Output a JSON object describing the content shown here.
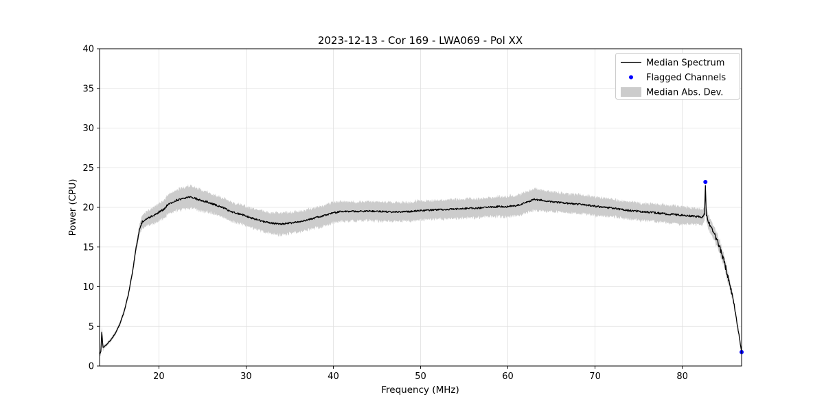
{
  "chart_data": {
    "type": "line",
    "title": "2023-12-13 - Cor 169 - LWA069 - Pol XX",
    "xlabel": "Frequency (MHz)",
    "ylabel": "Power (CPU)",
    "xlim": [
      13.2,
      86.8
    ],
    "ylim": [
      0,
      40
    ],
    "xticks": [
      20,
      30,
      40,
      50,
      60,
      70,
      80
    ],
    "yticks": [
      0,
      5,
      10,
      15,
      20,
      25,
      30,
      35,
      40
    ],
    "grid": true,
    "background": "#ffffff",
    "legend": {
      "position": "upper right"
    },
    "noise_seed": 42,
    "sample_step_mhz": 0.05,
    "noise_amplitude_anchors": [
      [
        13.2,
        0.04
      ],
      [
        16.0,
        0.06
      ],
      [
        18.0,
        0.12
      ],
      [
        20.0,
        0.13
      ],
      [
        30.0,
        0.11
      ],
      [
        40.0,
        0.1
      ],
      [
        50.0,
        0.1
      ],
      [
        60.0,
        0.11
      ],
      [
        70.0,
        0.11
      ],
      [
        80.0,
        0.12
      ],
      [
        82.5,
        0.15
      ],
      [
        83.5,
        0.35
      ],
      [
        85.0,
        0.35
      ],
      [
        86.0,
        0.25
      ],
      [
        86.8,
        0.05
      ]
    ],
    "series": [
      {
        "name": "Median Spectrum",
        "type": "line",
        "color": "#000000",
        "anchors": [
          [
            13.2,
            1.5
          ],
          [
            13.35,
            1.8
          ],
          [
            13.45,
            4.3
          ],
          [
            13.6,
            2.3
          ],
          [
            14.0,
            2.7
          ],
          [
            14.5,
            3.3
          ],
          [
            15.0,
            4.1
          ],
          [
            15.5,
            5.2
          ],
          [
            16.0,
            6.8
          ],
          [
            16.5,
            9.0
          ],
          [
            17.0,
            12.0
          ],
          [
            17.4,
            15.0
          ],
          [
            17.8,
            17.3
          ],
          [
            18.1,
            18.2
          ],
          [
            18.5,
            18.5
          ],
          [
            19.0,
            18.8
          ],
          [
            19.5,
            19.0
          ],
          [
            20.0,
            19.4
          ],
          [
            20.5,
            19.7
          ],
          [
            21.0,
            20.3
          ],
          [
            21.5,
            20.6
          ],
          [
            22.0,
            20.9
          ],
          [
            22.5,
            21.0
          ],
          [
            23.0,
            21.2
          ],
          [
            23.5,
            21.3
          ],
          [
            24.0,
            21.2
          ],
          [
            24.5,
            21.0
          ],
          [
            25.0,
            20.8
          ],
          [
            25.5,
            20.7
          ],
          [
            26.0,
            20.5
          ],
          [
            26.5,
            20.3
          ],
          [
            27.0,
            20.1
          ],
          [
            27.5,
            19.9
          ],
          [
            28.0,
            19.6
          ],
          [
            28.5,
            19.4
          ],
          [
            29.0,
            19.2
          ],
          [
            29.5,
            19.1
          ],
          [
            30.0,
            18.9
          ],
          [
            30.5,
            18.7
          ],
          [
            31.0,
            18.5
          ],
          [
            31.5,
            18.4
          ],
          [
            32.0,
            18.2
          ],
          [
            32.5,
            18.1
          ],
          [
            33.0,
            18.0
          ],
          [
            33.5,
            17.95
          ],
          [
            34.0,
            17.9
          ],
          [
            34.5,
            17.95
          ],
          [
            35.0,
            18.0
          ],
          [
            35.5,
            18.1
          ],
          [
            36.0,
            18.2
          ],
          [
            36.5,
            18.3
          ],
          [
            37.0,
            18.4
          ],
          [
            37.5,
            18.55
          ],
          [
            38.0,
            18.7
          ],
          [
            38.5,
            18.85
          ],
          [
            39.0,
            19.0
          ],
          [
            39.5,
            19.15
          ],
          [
            40.0,
            19.3
          ],
          [
            40.5,
            19.4
          ],
          [
            41.0,
            19.5
          ],
          [
            42.0,
            19.5
          ],
          [
            43.0,
            19.5
          ],
          [
            44.0,
            19.55
          ],
          [
            45.0,
            19.5
          ],
          [
            46.0,
            19.45
          ],
          [
            47.0,
            19.4
          ],
          [
            48.0,
            19.45
          ],
          [
            49.0,
            19.5
          ],
          [
            50.0,
            19.6
          ],
          [
            51.0,
            19.65
          ],
          [
            52.0,
            19.7
          ],
          [
            53.0,
            19.75
          ],
          [
            54.0,
            19.8
          ],
          [
            55.0,
            19.85
          ],
          [
            56.0,
            19.9
          ],
          [
            57.0,
            19.95
          ],
          [
            58.0,
            20.05
          ],
          [
            59.0,
            20.1
          ],
          [
            60.0,
            20.1
          ],
          [
            61.0,
            20.25
          ],
          [
            61.5,
            20.4
          ],
          [
            62.0,
            20.6
          ],
          [
            62.5,
            20.8
          ],
          [
            63.0,
            21.0
          ],
          [
            63.5,
            20.95
          ],
          [
            64.0,
            20.9
          ],
          [
            64.5,
            20.8
          ],
          [
            65.0,
            20.7
          ],
          [
            66.0,
            20.6
          ],
          [
            67.0,
            20.5
          ],
          [
            68.0,
            20.4
          ],
          [
            69.0,
            20.3
          ],
          [
            70.0,
            20.15
          ],
          [
            71.0,
            20.0
          ],
          [
            72.0,
            19.9
          ],
          [
            73.0,
            19.75
          ],
          [
            74.0,
            19.6
          ],
          [
            75.0,
            19.5
          ],
          [
            76.0,
            19.4
          ],
          [
            77.0,
            19.3
          ],
          [
            78.0,
            19.2
          ],
          [
            79.0,
            19.1
          ],
          [
            80.0,
            19.0
          ],
          [
            80.5,
            18.95
          ],
          [
            81.0,
            18.9
          ],
          [
            81.5,
            18.85
          ],
          [
            82.0,
            18.8
          ],
          [
            82.4,
            18.8
          ],
          [
            82.55,
            19.2
          ],
          [
            82.65,
            22.8
          ],
          [
            82.75,
            19.0
          ],
          [
            83.0,
            18.2
          ],
          [
            83.3,
            17.5
          ],
          [
            83.6,
            16.8
          ],
          [
            84.0,
            15.8
          ],
          [
            84.3,
            14.9
          ],
          [
            84.6,
            13.8
          ],
          [
            85.0,
            12.3
          ],
          [
            85.3,
            11.0
          ],
          [
            85.5,
            10.2
          ],
          [
            85.8,
            8.5
          ],
          [
            86.0,
            7.3
          ],
          [
            86.3,
            5.2
          ],
          [
            86.5,
            3.9
          ],
          [
            86.7,
            2.4
          ],
          [
            86.8,
            1.8
          ]
        ]
      },
      {
        "name": "Flagged Channels",
        "type": "scatter",
        "color": "#0000ff",
        "marker": "point",
        "points": [
          [
            82.65,
            23.2
          ],
          [
            86.8,
            1.75
          ]
        ]
      },
      {
        "name": "Median Abs. Dev.",
        "type": "band",
        "color": "#cccccc",
        "halfwidth_anchors": [
          [
            13.2,
            0.15
          ],
          [
            13.45,
            0.8
          ],
          [
            13.7,
            0.2
          ],
          [
            15.0,
            0.25
          ],
          [
            16.5,
            0.35
          ],
          [
            17.5,
            0.6
          ],
          [
            18.0,
            0.8
          ],
          [
            19.0,
            1.0
          ],
          [
            20.0,
            1.1
          ],
          [
            21.0,
            1.2
          ],
          [
            22.0,
            1.3
          ],
          [
            23.0,
            1.4
          ],
          [
            24.0,
            1.4
          ],
          [
            25.0,
            1.3
          ],
          [
            26.0,
            1.2
          ],
          [
            28.0,
            1.2
          ],
          [
            30.0,
            1.2
          ],
          [
            32.0,
            1.3
          ],
          [
            34.0,
            1.4
          ],
          [
            36.0,
            1.3
          ],
          [
            38.0,
            1.3
          ],
          [
            40.0,
            1.3
          ],
          [
            42.0,
            1.2
          ],
          [
            44.0,
            1.2
          ],
          [
            46.0,
            1.2
          ],
          [
            48.0,
            1.2
          ],
          [
            50.0,
            1.2
          ],
          [
            52.0,
            1.2
          ],
          [
            54.0,
            1.2
          ],
          [
            56.0,
            1.2
          ],
          [
            58.0,
            1.2
          ],
          [
            60.0,
            1.3
          ],
          [
            62.0,
            1.3
          ],
          [
            63.0,
            1.4
          ],
          [
            64.0,
            1.3
          ],
          [
            66.0,
            1.2
          ],
          [
            68.0,
            1.2
          ],
          [
            70.0,
            1.2
          ],
          [
            72.0,
            1.1
          ],
          [
            74.0,
            1.1
          ],
          [
            76.0,
            1.1
          ],
          [
            78.0,
            1.1
          ],
          [
            80.0,
            1.1
          ],
          [
            81.0,
            1.0
          ],
          [
            82.0,
            1.0
          ],
          [
            83.0,
            0.9
          ],
          [
            84.0,
            0.8
          ],
          [
            85.0,
            0.7
          ],
          [
            85.5,
            0.6
          ],
          [
            86.0,
            0.4
          ],
          [
            86.5,
            0.25
          ],
          [
            86.8,
            0.1
          ]
        ]
      }
    ]
  }
}
